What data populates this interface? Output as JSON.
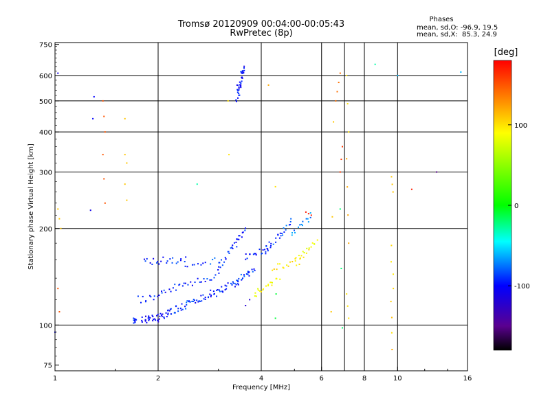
{
  "chart_data": {
    "type": "scatter",
    "title": "Tromsø 20120909 00:04:00-00:05:43",
    "subtitle": "RwPretec (8p)",
    "stats": {
      "heading": "Phases",
      "line1": "mean, sd,O: -96.9, 19.5",
      "line2": "mean, sd,X:  85.3, 24.9"
    },
    "xlabel": "Frequency [MHz]",
    "ylabel": "Stationary phase Virtual Height [km]",
    "x_scale": "log",
    "y_scale": "log",
    "xlim": [
      1,
      16
    ],
    "ylim": [
      72,
      760
    ],
    "x_ticks": [
      1,
      2,
      4,
      6,
      8,
      10,
      16
    ],
    "x_grid": [
      2,
      4,
      6,
      7,
      8,
      10
    ],
    "y_ticks": [
      75,
      100,
      200,
      300,
      400,
      500,
      600,
      750
    ],
    "y_grid": [
      100,
      200,
      300,
      400,
      500,
      600
    ],
    "grid": true,
    "colorbar": {
      "label": "[deg]",
      "range": [
        -180,
        180
      ],
      "ticks": [
        -100,
        0,
        100
      ],
      "colors": [
        "#000000",
        "#5a0090",
        "#0000ff",
        "#00ffff",
        "#00ff00",
        "#ffff00",
        "#ff8c00",
        "#ff0000"
      ]
    },
    "series": [
      {
        "segments": [
          [
            1.7,
            104,
            1.72,
            104,
            -90,
            10
          ],
          [
            1.8,
            104,
            2.0,
            105,
            -104,
            26
          ],
          [
            2.0,
            106,
            2.2,
            110,
            -100,
            18
          ],
          [
            2.2,
            110,
            2.5,
            118,
            -90,
            20
          ],
          [
            2.5,
            118,
            2.9,
            126,
            -95,
            22
          ],
          [
            2.9,
            125,
            3.4,
            136,
            -92,
            24
          ],
          [
            3.4,
            136,
            3.8,
            150,
            -90,
            22
          ],
          [
            1.75,
            120,
            2.0,
            122,
            -96,
            10
          ],
          [
            2.0,
            126,
            2.4,
            134,
            -95,
            14
          ],
          [
            2.4,
            134,
            3.0,
            142,
            -92,
            16
          ],
          [
            1.82,
            158,
            2.4,
            160,
            -95,
            22
          ],
          [
            2.4,
            152,
            3.0,
            160,
            -88,
            12
          ],
          [
            3.0,
            150,
            3.6,
            200,
            -95,
            30
          ],
          [
            3.6,
            162,
            4.2,
            175,
            -95,
            18
          ],
          [
            4.1,
            170,
            4.9,
            210,
            -85,
            26
          ],
          [
            4.9,
            190,
            5.6,
            220,
            -75,
            14
          ],
          [
            3.4,
            510,
            3.56,
            640,
            -100,
            34
          ],
          [
            3.8,
            125,
            4.5,
            142,
            90,
            20
          ],
          [
            4.3,
            150,
            5.2,
            158,
            100,
            14
          ],
          [
            5.0,
            158,
            5.8,
            180,
            90,
            18
          ],
          [
            1.02,
            610,
            1.05,
            610,
            -110,
            1
          ],
          [
            1.0,
            95,
            1.05,
            95,
            -100,
            1
          ],
          [
            1.3,
            515,
            1.31,
            515,
            -100,
            1
          ],
          [
            1.29,
            440,
            1.3,
            440,
            -100,
            1
          ],
          [
            1.27,
            228,
            1.28,
            228,
            -110,
            1
          ],
          [
            1.38,
            500,
            1.4,
            400,
            150,
            3
          ],
          [
            1.38,
            340,
            1.4,
            240,
            150,
            3
          ],
          [
            1.6,
            440,
            1.62,
            440,
            110,
            1
          ],
          [
            1.6,
            340,
            1.62,
            320,
            110,
            2
          ],
          [
            1.6,
            275,
            1.62,
            245,
            110,
            2
          ],
          [
            1.02,
            230,
            1.04,
            200,
            110,
            3
          ],
          [
            1.02,
            130,
            1.03,
            110,
            150,
            2
          ],
          [
            2.6,
            275,
            2.62,
            275,
            -30,
            1
          ],
          [
            3.2,
            500,
            3.22,
            340,
            100,
            2
          ],
          [
            4.2,
            560,
            4.22,
            560,
            120,
            1
          ],
          [
            4.4,
            270,
            4.42,
            270,
            100,
            1
          ],
          [
            4.4,
            105,
            4.42,
            125,
            -10,
            2
          ],
          [
            6.4,
            110,
            6.5,
            430,
            110,
            3
          ],
          [
            6.6,
            500,
            6.8,
            610,
            140,
            4
          ],
          [
            6.8,
            300,
            6.9,
            360,
            160,
            3
          ],
          [
            6.8,
            230,
            6.9,
            98,
            -20,
            3
          ],
          [
            7.1,
            600,
            7.2,
            400,
            100,
            3
          ],
          [
            7.1,
            330,
            7.2,
            180,
            120,
            4
          ],
          [
            7.1,
            125,
            7.2,
            105,
            100,
            3
          ],
          [
            8.6,
            650,
            8.7,
            650,
            -30,
            1
          ],
          [
            9.6,
            290,
            9.7,
            260,
            110,
            3
          ],
          [
            9.6,
            180,
            9.7,
            84,
            110,
            8
          ],
          [
            10.0,
            600,
            10.1,
            600,
            -60,
            1
          ],
          [
            11.0,
            265,
            11.1,
            265,
            170,
            1
          ],
          [
            13.0,
            300,
            13.2,
            300,
            -150,
            1
          ],
          [
            15.3,
            615,
            15.4,
            615,
            -60,
            1
          ],
          [
            3.4,
            560,
            3.6,
            560,
            -110,
            1
          ],
          [
            5.4,
            225,
            5.6,
            220,
            170,
            3
          ],
          [
            3.6,
            115,
            3.7,
            120,
            -120,
            2
          ]
        ],
        "segment_fields": [
          "x_start",
          "y_start",
          "x_end",
          "y_end",
          "phase_deg",
          "count"
        ]
      }
    ]
  }
}
